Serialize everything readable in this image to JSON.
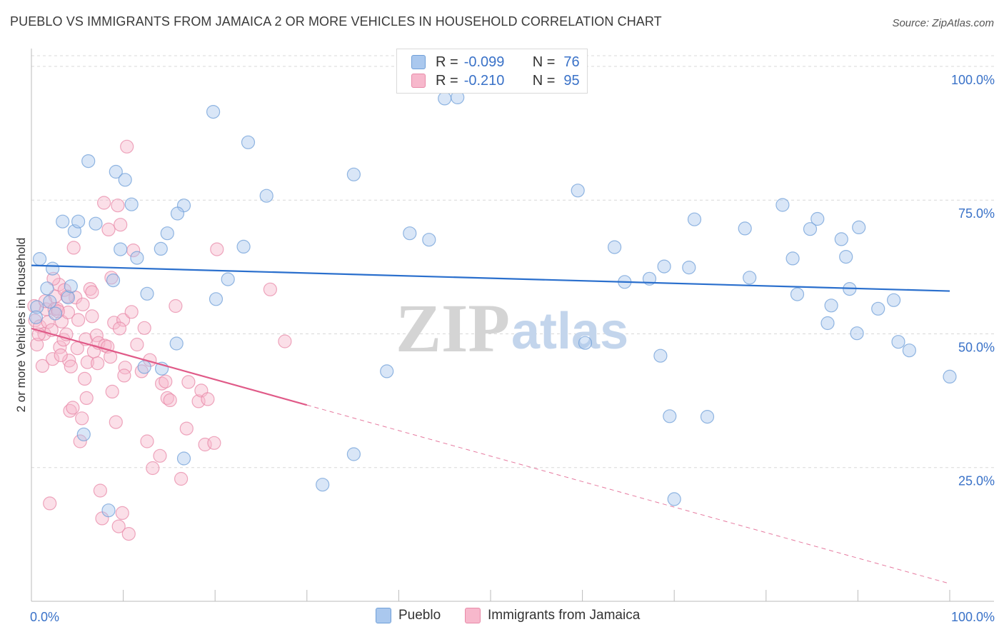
{
  "title": "PUEBLO VS IMMIGRANTS FROM JAMAICA 2 OR MORE VEHICLES IN HOUSEHOLD CORRELATION CHART",
  "source": "Source: ZipAtlas.com",
  "watermark": {
    "zip": "ZIP",
    "atlas": "atlas"
  },
  "legend": {
    "rows": [
      {
        "r_label": "R =",
        "r_value": "-0.099",
        "n_label": "N =",
        "n_value": "76"
      },
      {
        "r_label": "R =",
        "r_value": "-0.210",
        "n_label": "N =",
        "n_value": "95"
      }
    ]
  },
  "bottom_legend": {
    "pueblo": "Pueblo",
    "jamaica": "Immigrants from Jamaica"
  },
  "colors": {
    "pueblo_fill": "#aac8ee",
    "pueblo_stroke": "#6f9fd8",
    "pueblo_line": "#2a6fcd",
    "jamaica_fill": "#f7b8cc",
    "jamaica_stroke": "#e88aa8",
    "jamaica_line": "#e05a88",
    "tick_label": "#3a72c8",
    "grid": "#d8d8d8"
  },
  "chart_data": {
    "type": "scatter",
    "title": "PUEBLO VS IMMIGRANTS FROM JAMAICA 2 OR MORE VEHICLES IN HOUSEHOLD CORRELATION CHART",
    "xlabel": "",
    "ylabel": "2 or more Vehicles in Household",
    "xlim": [
      0,
      100
    ],
    "ylim": [
      0,
      102
    ],
    "x_tick_labels": [
      "0.0%",
      "100.0%"
    ],
    "y_ticks": [
      25,
      50,
      75,
      100
    ],
    "y_tick_labels": [
      "25.0%",
      "50.0%",
      "75.0%",
      "100.0%"
    ],
    "grid": "horizontal dashed",
    "series": [
      {
        "name": "Pueblo",
        "r": -0.099,
        "n": 76,
        "trend": {
          "x0": 0,
          "y0": 62.8,
          "x1": 100,
          "y1": 58.0,
          "solid_to": 100
        },
        "points": [
          [
            0.6,
            55.0
          ],
          [
            0.9,
            64.0
          ],
          [
            1.7,
            58.5
          ],
          [
            2.0,
            56.0
          ],
          [
            2.3,
            62.2
          ],
          [
            2.6,
            53.8
          ],
          [
            3.4,
            71.0
          ],
          [
            4.0,
            56.8
          ],
          [
            4.3,
            58.9
          ],
          [
            4.7,
            69.2
          ],
          [
            5.1,
            71.0
          ],
          [
            5.7,
            31.2
          ],
          [
            6.2,
            82.3
          ],
          [
            7.0,
            70.6
          ],
          [
            8.4,
            17.0
          ],
          [
            8.9,
            60.0
          ],
          [
            9.2,
            80.3
          ],
          [
            9.7,
            65.8
          ],
          [
            10.2,
            78.8
          ],
          [
            10.9,
            74.2
          ],
          [
            11.5,
            64.2
          ],
          [
            12.3,
            43.8
          ],
          [
            12.6,
            57.5
          ],
          [
            14.2,
            43.5
          ],
          [
            14.1,
            65.9
          ],
          [
            14.8,
            68.8
          ],
          [
            15.8,
            48.2
          ],
          [
            16.6,
            26.7
          ],
          [
            16.6,
            74.0
          ],
          [
            15.9,
            72.5
          ],
          [
            19.8,
            91.5
          ],
          [
            20.1,
            56.5
          ],
          [
            21.4,
            60.2
          ],
          [
            23.1,
            66.3
          ],
          [
            23.6,
            85.8
          ],
          [
            25.6,
            75.8
          ],
          [
            31.7,
            21.8
          ],
          [
            35.1,
            27.5
          ],
          [
            35.1,
            79.8
          ],
          [
            38.7,
            43.0
          ],
          [
            41.2,
            68.8
          ],
          [
            43.3,
            67.6
          ],
          [
            45.0,
            94.0
          ],
          [
            46.4,
            94.2
          ],
          [
            59.5,
            76.8
          ],
          [
            60.3,
            48.3
          ],
          [
            63.5,
            66.2
          ],
          [
            64.6,
            59.7
          ],
          [
            67.3,
            60.3
          ],
          [
            68.5,
            45.9
          ],
          [
            68.9,
            62.6
          ],
          [
            69.5,
            34.6
          ],
          [
            70.0,
            19.1
          ],
          [
            71.6,
            62.4
          ],
          [
            72.2,
            71.4
          ],
          [
            73.6,
            34.5
          ],
          [
            77.7,
            69.7
          ],
          [
            78.2,
            60.5
          ],
          [
            81.8,
            74.1
          ],
          [
            82.9,
            64.1
          ],
          [
            83.4,
            57.4
          ],
          [
            84.8,
            69.6
          ],
          [
            85.6,
            71.5
          ],
          [
            86.7,
            52.0
          ],
          [
            87.1,
            55.3
          ],
          [
            88.2,
            67.7
          ],
          [
            88.7,
            64.4
          ],
          [
            89.1,
            58.4
          ],
          [
            89.9,
            50.1
          ],
          [
            90.1,
            69.9
          ],
          [
            92.2,
            54.7
          ],
          [
            93.9,
            56.3
          ],
          [
            94.4,
            48.5
          ],
          [
            95.6,
            46.9
          ],
          [
            100.0,
            42.0
          ],
          [
            0.5,
            53.1
          ]
        ]
      },
      {
        "name": "Immigrants from Jamaica",
        "r": -0.21,
        "n": 95,
        "trend": {
          "x0": 0,
          "y0": 51.0,
          "x1": 100,
          "y1": 3.3,
          "solid_to": 30
        },
        "points": [
          [
            0.3,
            55.2
          ],
          [
            0.4,
            52.5
          ],
          [
            0.6,
            48.0
          ],
          [
            0.9,
            51.4
          ],
          [
            1.2,
            44.0
          ],
          [
            1.4,
            50.0
          ],
          [
            1.6,
            54.6
          ],
          [
            1.8,
            52.2
          ],
          [
            2.0,
            18.3
          ],
          [
            2.2,
            50.7
          ],
          [
            2.3,
            45.3
          ],
          [
            2.5,
            54.6
          ],
          [
            2.6,
            57.0
          ],
          [
            2.8,
            54.7
          ],
          [
            3.0,
            59.2
          ],
          [
            3.1,
            47.5
          ],
          [
            3.3,
            52.3
          ],
          [
            3.5,
            48.9
          ],
          [
            3.6,
            58.2
          ],
          [
            3.8,
            49.9
          ],
          [
            4.0,
            54.0
          ],
          [
            4.1,
            45.0
          ],
          [
            4.2,
            35.6
          ],
          [
            4.5,
            36.2
          ],
          [
            4.6,
            66.1
          ],
          [
            4.8,
            56.8
          ],
          [
            5.0,
            47.3
          ],
          [
            5.1,
            52.6
          ],
          [
            5.3,
            29.9
          ],
          [
            5.5,
            34.2
          ],
          [
            5.8,
            41.6
          ],
          [
            5.9,
            49.0
          ],
          [
            6.1,
            44.7
          ],
          [
            6.4,
            58.4
          ],
          [
            6.6,
            53.3
          ],
          [
            6.8,
            46.7
          ],
          [
            7.1,
            49.7
          ],
          [
            7.3,
            48.3
          ],
          [
            7.5,
            20.7
          ],
          [
            7.7,
            15.5
          ],
          [
            7.9,
            74.5
          ],
          [
            8.0,
            47.8
          ],
          [
            8.3,
            47.6
          ],
          [
            8.4,
            69.5
          ],
          [
            8.6,
            45.7
          ],
          [
            8.8,
            39.2
          ],
          [
            9.0,
            52.1
          ],
          [
            9.2,
            33.5
          ],
          [
            9.4,
            74.0
          ],
          [
            9.5,
            14.0
          ],
          [
            9.7,
            70.4
          ],
          [
            9.9,
            16.5
          ],
          [
            10.0,
            52.6
          ],
          [
            10.2,
            43.7
          ],
          [
            10.4,
            85.0
          ],
          [
            10.6,
            12.6
          ],
          [
            10.9,
            54.1
          ],
          [
            11.1,
            65.6
          ],
          [
            12.3,
            51.1
          ],
          [
            12.6,
            29.9
          ],
          [
            12.9,
            45.1
          ],
          [
            13.2,
            24.9
          ],
          [
            14.0,
            27.2
          ],
          [
            14.2,
            40.7
          ],
          [
            14.6,
            41.1
          ],
          [
            14.8,
            38.0
          ],
          [
            15.1,
            37.6
          ],
          [
            15.7,
            55.2
          ],
          [
            16.3,
            22.9
          ],
          [
            16.9,
            32.3
          ],
          [
            17.1,
            41.0
          ],
          [
            18.2,
            37.4
          ],
          [
            18.5,
            39.4
          ],
          [
            18.9,
            29.3
          ],
          [
            19.2,
            37.8
          ],
          [
            19.9,
            29.6
          ],
          [
            20.2,
            65.8
          ],
          [
            26.0,
            58.3
          ],
          [
            27.6,
            48.6
          ],
          [
            3.9,
            57.0
          ],
          [
            6.6,
            57.8
          ],
          [
            2.9,
            54.2
          ],
          [
            1.5,
            56.1
          ],
          [
            5.6,
            55.5
          ],
          [
            0.8,
            49.9
          ],
          [
            8.7,
            60.5
          ],
          [
            10.1,
            42.2
          ],
          [
            12.0,
            43.0
          ],
          [
            7.2,
            44.5
          ],
          [
            4.3,
            43.9
          ],
          [
            3.2,
            46.0
          ],
          [
            6.0,
            38.0
          ],
          [
            11.5,
            48.0
          ],
          [
            9.6,
            51.0
          ],
          [
            2.4,
            60.3
          ]
        ]
      }
    ]
  }
}
